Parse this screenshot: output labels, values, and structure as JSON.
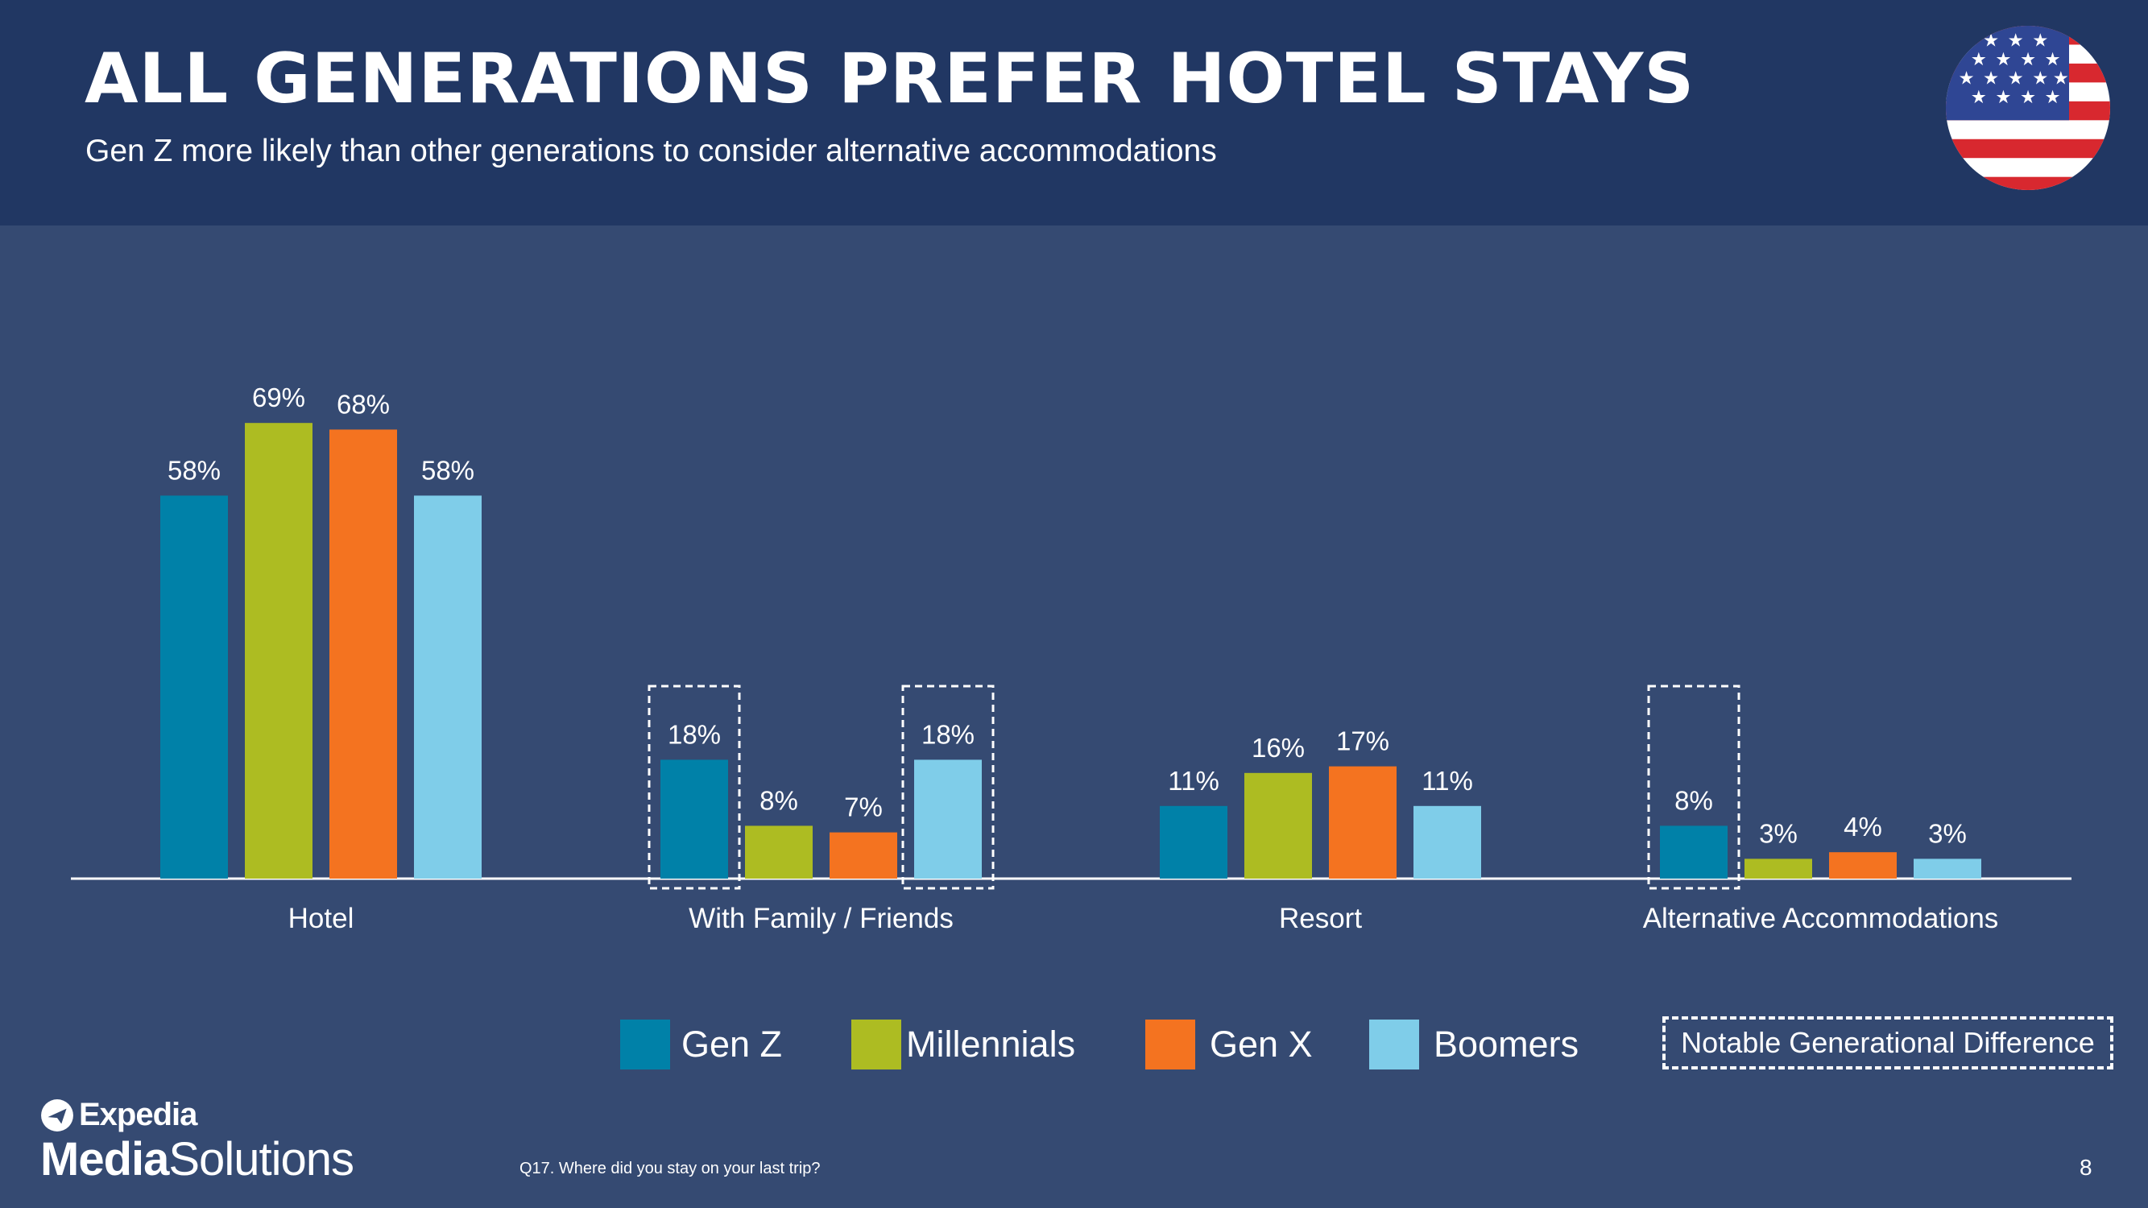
{
  "header": {
    "title": "ALL GENERATIONS PREFER HOTEL STAYS",
    "subtitle": "Gen Z more likely than other generations to consider alternative accommodations"
  },
  "flag_icon": "us-flag-icon",
  "colors": {
    "header_bg": "#213763",
    "page_bg": "#354a72",
    "gen_z": "#0081a8",
    "millennials": "#adbc22",
    "gen_x": "#f47320",
    "boomers": "#7fcde9"
  },
  "chart_data": {
    "type": "bar",
    "categories": [
      "Hotel",
      "With Family / Friends",
      "Resort",
      "Alternative Accommodations"
    ],
    "series": [
      {
        "name": "Gen Z",
        "color": "#0081a8",
        "values": [
          58,
          18,
          11,
          8
        ],
        "labels": [
          "58%",
          "18%",
          "11%",
          "8%"
        ]
      },
      {
        "name": "Millennials",
        "color": "#adbc22",
        "values": [
          69,
          8,
          16,
          3
        ],
        "labels": [
          "69%",
          "8%",
          "16%",
          "3%"
        ]
      },
      {
        "name": "Gen X",
        "color": "#f47320",
        "values": [
          68,
          7,
          17,
          4
        ],
        "labels": [
          "68%",
          "7%",
          "17%",
          "4%"
        ]
      },
      {
        "name": "Boomers",
        "color": "#7fcde9",
        "values": [
          58,
          18,
          11,
          3
        ],
        "labels": [
          "58%",
          "18%",
          "11%",
          "3%"
        ]
      }
    ],
    "highlighted": [
      {
        "category": "With Family / Friends",
        "series": "Gen Z"
      },
      {
        "category": "With Family / Friends",
        "series": "Boomers"
      },
      {
        "category": "Alternative Accommodations",
        "series": "Gen Z"
      }
    ],
    "ylim": [
      0,
      75
    ],
    "grid": false,
    "legend_position": "bottom"
  },
  "legend": {
    "items": [
      "Gen Z",
      "Millennials",
      "Gen X",
      "Boomers"
    ],
    "notable": "Notable Generational Difference"
  },
  "logo": {
    "brand": "Expedia",
    "product_bold": "Media",
    "product_regular": "Solutions"
  },
  "footnote": "Q17. Where did you stay on your last trip?",
  "page_number": "8"
}
